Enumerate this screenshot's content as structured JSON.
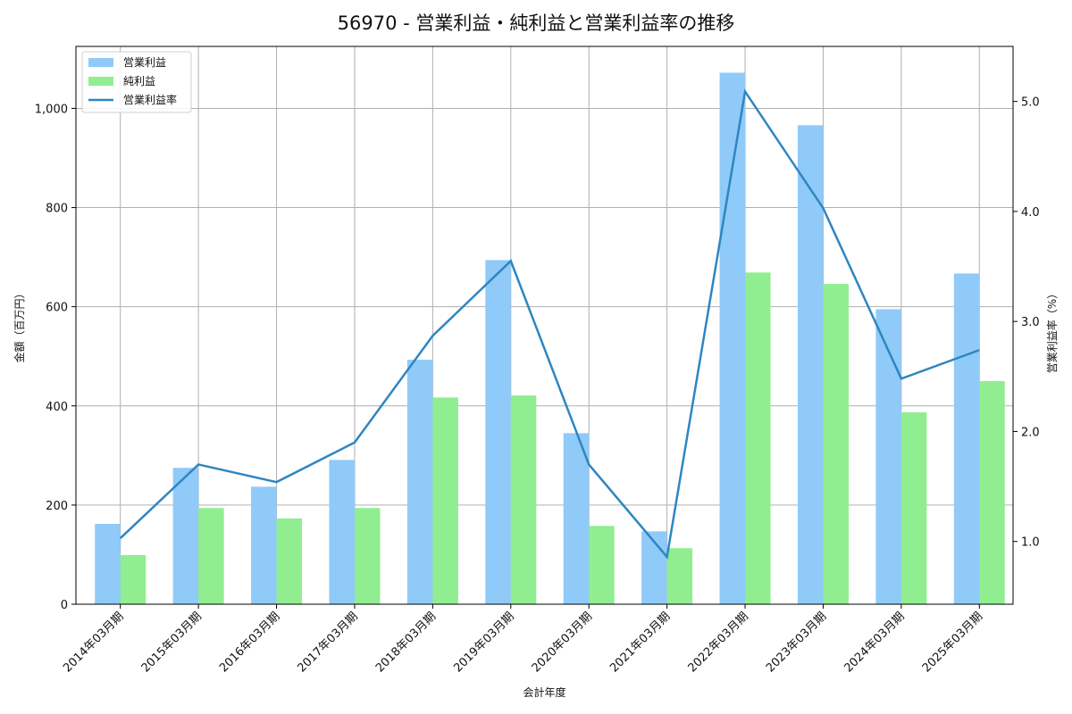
{
  "title": "56970 - 営業利益・純利益と営業利益率の推移",
  "chart_data": {
    "type": "bar",
    "title": "56970 - 営業利益・純利益と営業利益率の推移",
    "xlabel": "会計年度",
    "ylabel": "金額（百万円）",
    "y2label": "営業利益率（%）",
    "categories": [
      "2014年03月期",
      "2015年03月期",
      "2016年03月期",
      "2017年03月期",
      "2018年03月期",
      "2019年03月期",
      "2020年03月期",
      "2021年03月期",
      "2022年03月期",
      "2023年03月期",
      "2024年03月期",
      "2025年03月期"
    ],
    "series": [
      {
        "name": "営業利益",
        "type": "bar",
        "axis": "left",
        "color": "#90CAF9",
        "values": [
          162,
          275,
          237,
          291,
          493,
          694,
          345,
          147,
          1072,
          966,
          595,
          667
        ]
      },
      {
        "name": "純利益",
        "type": "bar",
        "axis": "left",
        "color": "#90EE90",
        "values": [
          99,
          194,
          173,
          194,
          417,
          421,
          158,
          113,
          669,
          646,
          387,
          450
        ]
      },
      {
        "name": "営業利益率",
        "type": "line",
        "axis": "right",
        "color": "#2E86C1",
        "values": [
          1.03,
          1.7,
          1.54,
          1.9,
          2.87,
          3.55,
          1.7,
          0.86,
          5.09,
          4.03,
          2.48,
          2.74
        ]
      }
    ],
    "ylim": [
      0,
      1125
    ],
    "y2lim": [
      0.43,
      5.5
    ],
    "yticks": [
      0,
      200,
      400,
      600,
      800,
      1000
    ],
    "ytick_labels": [
      "0",
      "200",
      "400",
      "600",
      "800",
      "1,000"
    ],
    "y2ticks": [
      1.0,
      2.0,
      3.0,
      4.0,
      5.0
    ],
    "y2tick_labels": [
      "1.0",
      "2.0",
      "3.0",
      "4.0",
      "5.0"
    ],
    "grid": true,
    "legend_position": "upper left"
  }
}
